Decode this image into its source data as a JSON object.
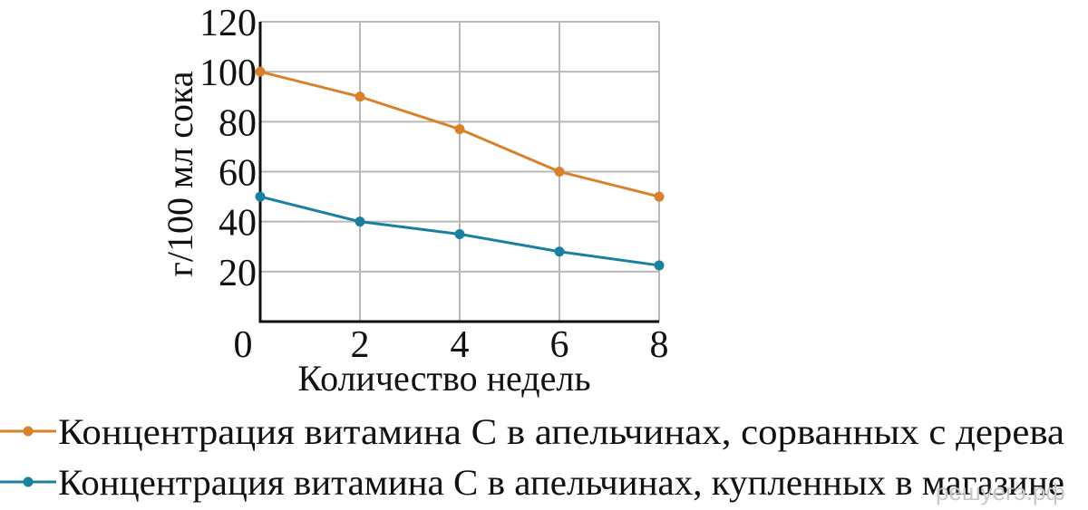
{
  "chart_data": {
    "type": "line",
    "ylabel": "г/100 мл сока",
    "xlabel": "Количество недель",
    "x": [
      0,
      2,
      4,
      6,
      8
    ],
    "xlim": [
      0,
      8
    ],
    "ylim": [
      0,
      120
    ],
    "xticks": [
      "0",
      "2",
      "4",
      "6",
      "8"
    ],
    "yticks": [
      "20",
      "40",
      "60",
      "80",
      "100",
      "120"
    ],
    "grid": true,
    "legend_position": "bottom",
    "series": [
      {
        "name": "Концентрация витамина С в апельчинах, сорванных с дерева",
        "color": "#d7812a",
        "values": [
          100,
          90,
          77,
          60,
          50
        ]
      },
      {
        "name": "Концентрация витамина С в апельчинах, купленных в магазине",
        "color": "#19809f",
        "values": [
          50,
          40,
          35,
          28,
          22.5
        ]
      }
    ]
  },
  "watermark": "решуегэ.рф"
}
